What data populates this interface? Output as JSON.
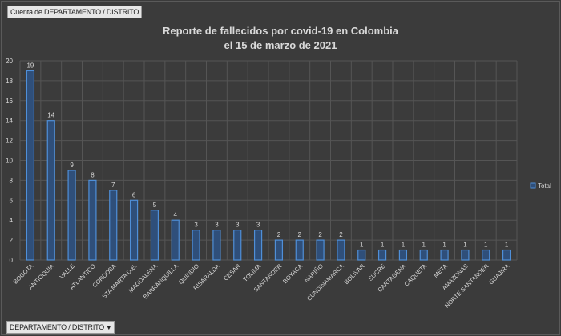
{
  "field_buttons": {
    "values_field": "Cuenta de DEPARTAMENTO / DISTRITO",
    "axis_field": "DEPARTAMENTO / DISTRITO",
    "axis_field_icon": "dropdown-arrow-icon"
  },
  "chart_data": {
    "type": "bar",
    "title_line1": "Reporte de fallecidos por covid-19 en Colombia",
    "title_line2": "el 15 de marzo de 2021",
    "categories": [
      "BOGOTA",
      "ANTIOQUIA",
      "VALLE",
      "ATLANTICO",
      "CORDOBA",
      "STA MARTA D.E.",
      "MAGDALENA",
      "BARRANQUILLA",
      "QUINDIO",
      "RISARALDA",
      "CESAR",
      "TOLIMA",
      "SANTANDER",
      "BOYACA",
      "NARIÑO",
      "CUNDINAMARCA",
      "BOLIVAR",
      "SUCRE",
      "CARTAGENA",
      "CAQUETA",
      "META",
      "AMAZONAS",
      "NORTE SANTANDER",
      "GUAJIRA"
    ],
    "series": [
      {
        "name": "Total",
        "values": [
          19,
          14,
          9,
          8,
          7,
          6,
          5,
          4,
          3,
          3,
          3,
          3,
          2,
          2,
          2,
          2,
          1,
          1,
          1,
          1,
          1,
          1,
          1,
          1
        ]
      }
    ],
    "yticks": [
      0,
      2,
      4,
      6,
      8,
      10,
      12,
      14,
      16,
      18,
      20
    ],
    "ylim": [
      0,
      20
    ],
    "grid": true,
    "legend_placement": "right",
    "data_labels": true,
    "colors": {
      "background": "#3b3b3b",
      "bar_fill": "#2f4f7a",
      "bar_edge": "#4f8fd8",
      "text": "#d9d9d9",
      "grid": "#555555"
    }
  }
}
